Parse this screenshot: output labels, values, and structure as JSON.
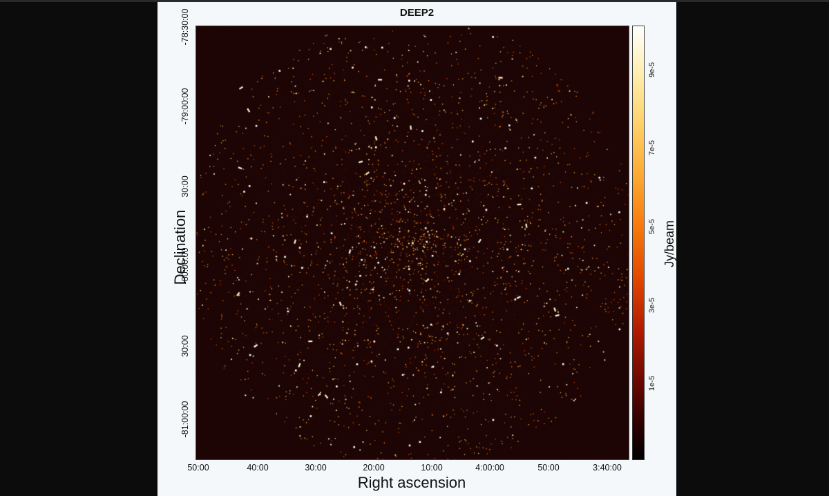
{
  "figure": {
    "title": "DEEP2",
    "x_axis_label": "Right ascension",
    "y_axis_label": "Declination",
    "x_ticks": [
      "50:00",
      "40:00",
      "30:00",
      "20:00",
      "10:00",
      "4:00:00",
      "50:00",
      "3:40:00"
    ],
    "y_ticks": [
      "-78:30:00",
      "-79:00:00",
      "30:00",
      "-80:00:00",
      "30:00",
      "-81:00:00"
    ],
    "colorbar": {
      "label": "Jy/beam",
      "ticks": [
        "9e-5",
        "7e-5",
        "5e-5",
        "3e-5",
        "1e-5"
      ],
      "colormap": "afmhot-like",
      "colors": [
        "#000000",
        "#6b0800",
        "#e34800",
        "#fdab35",
        "#fff0b4",
        "#ffffff"
      ]
    },
    "background_color": "#1c0504"
  }
}
